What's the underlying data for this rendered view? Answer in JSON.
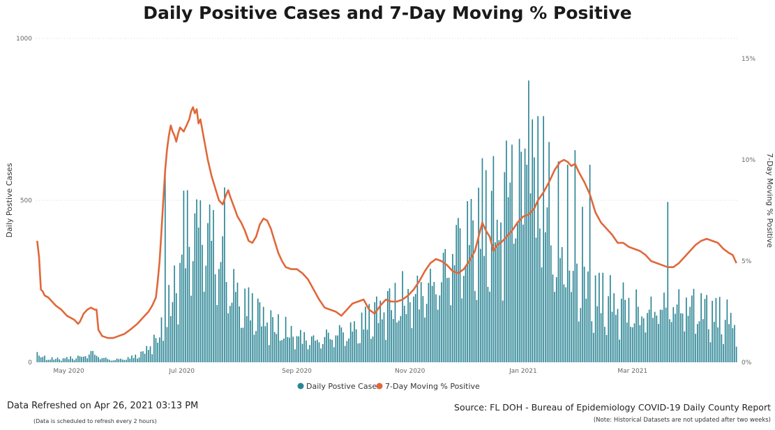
{
  "chart_data": {
    "type": "bar+line",
    "title": "Daily Positive Cases and 7-Day Moving % Positive",
    "ylabel": "Daily Postive Cases",
    "y2label": "7-Day Moving % Positive",
    "ylim": [
      0,
      1000
    ],
    "y2lim": [
      0,
      16
    ],
    "y_ticks": [
      "0",
      "500",
      "1000"
    ],
    "y2_ticks": [
      "0%",
      "5%",
      "10%",
      "15%"
    ],
    "x_ticks": [
      "May 2020",
      "Jul 2020",
      "Sep 2020",
      "Nov 2020",
      "Jan 2021",
      "Mar 2021"
    ],
    "x_tick_days": [
      17,
      78,
      140,
      201,
      262,
      321
    ],
    "start_date": "2020-04-14",
    "legend": [
      "Daily Postive Cases",
      "7-Day Moving  % Positive"
    ],
    "legend_position": "bottom",
    "colors": {
      "bars": "#2a8494",
      "line": "#e0683a",
      "grid": "#d4d4d4"
    },
    "series": [
      {
        "name": "Daily Postive Cases",
        "kind": "bar",
        "anchors": [
          [
            0,
            25
          ],
          [
            5,
            12
          ],
          [
            10,
            10
          ],
          [
            15,
            12
          ],
          [
            20,
            15
          ],
          [
            25,
            18
          ],
          [
            28,
            30
          ],
          [
            32,
            22
          ],
          [
            36,
            12
          ],
          [
            40,
            8
          ],
          [
            45,
            10
          ],
          [
            50,
            14
          ],
          [
            55,
            22
          ],
          [
            58,
            35
          ],
          [
            62,
            60
          ],
          [
            65,
            80
          ],
          [
            68,
            110
          ],
          [
            70,
            150
          ],
          [
            73,
            200
          ],
          [
            76,
            260
          ],
          [
            78,
            330
          ],
          [
            80,
            400
          ],
          [
            83,
            430
          ],
          [
            86,
            440
          ],
          [
            90,
            420
          ],
          [
            93,
            370
          ],
          [
            96,
            330
          ],
          [
            100,
            290
          ],
          [
            104,
            250
          ],
          [
            108,
            210
          ],
          [
            112,
            180
          ],
          [
            116,
            165
          ],
          [
            120,
            150
          ],
          [
            125,
            130
          ],
          [
            130,
            110
          ],
          [
            135,
            95
          ],
          [
            140,
            80
          ],
          [
            145,
            75
          ],
          [
            150,
            70
          ],
          [
            155,
            80
          ],
          [
            160,
            85
          ],
          [
            165,
            90
          ],
          [
            170,
            100
          ],
          [
            175,
            120
          ],
          [
            180,
            140
          ],
          [
            185,
            160
          ],
          [
            190,
            180
          ],
          [
            195,
            195
          ],
          [
            200,
            200
          ],
          [
            205,
            210
          ],
          [
            210,
            230
          ],
          [
            215,
            260
          ],
          [
            220,
            300
          ],
          [
            225,
            340
          ],
          [
            230,
            380
          ],
          [
            235,
            410
          ],
          [
            240,
            430
          ],
          [
            245,
            450
          ],
          [
            250,
            470
          ],
          [
            255,
            520
          ],
          [
            258,
            580
          ],
          [
            262,
            600
          ],
          [
            265,
            560
          ],
          [
            268,
            500
          ],
          [
            272,
            440
          ],
          [
            276,
            380
          ],
          [
            280,
            320
          ],
          [
            285,
            280
          ],
          [
            290,
            250
          ],
          [
            295,
            230
          ],
          [
            300,
            215
          ],
          [
            305,
            200
          ],
          [
            310,
            185
          ],
          [
            315,
            175
          ],
          [
            320,
            165
          ],
          [
            325,
            160
          ],
          [
            330,
            160
          ],
          [
            335,
            170
          ],
          [
            340,
            180
          ],
          [
            345,
            185
          ],
          [
            350,
            180
          ],
          [
            355,
            170
          ],
          [
            360,
            160
          ],
          [
            365,
            150
          ],
          [
            370,
            140
          ],
          [
            375,
            130
          ],
          [
            377,
            120
          ]
        ],
        "spikes": [
          [
            69,
            587
          ],
          [
            79,
            530
          ],
          [
            85,
            460
          ],
          [
            88,
            500
          ],
          [
            95,
            470
          ],
          [
            101,
            540
          ],
          [
            240,
            630
          ],
          [
            248,
            440
          ],
          [
            255,
            555
          ],
          [
            260,
            690
          ],
          [
            261,
            650
          ],
          [
            263,
            660
          ],
          [
            264,
            610
          ],
          [
            265,
            870
          ],
          [
            267,
            750
          ],
          [
            270,
            760
          ],
          [
            273,
            760
          ],
          [
            276,
            680
          ],
          [
            281,
            620
          ],
          [
            286,
            610
          ],
          [
            290,
            655
          ],
          [
            294,
            480
          ],
          [
            298,
            610
          ],
          [
            340,
            495
          ]
        ]
      },
      {
        "name": "7-Day Moving  % Positive",
        "kind": "line",
        "points": [
          [
            0,
            6.0
          ],
          [
            1,
            5.2
          ],
          [
            2,
            3.6
          ],
          [
            3,
            3.5
          ],
          [
            4,
            3.3
          ],
          [
            6,
            3.2
          ],
          [
            8,
            3.0
          ],
          [
            10,
            2.8
          ],
          [
            13,
            2.6
          ],
          [
            16,
            2.3
          ],
          [
            18,
            2.2
          ],
          [
            20,
            2.1
          ],
          [
            21,
            2.0
          ],
          [
            22,
            1.9
          ],
          [
            23,
            2.0
          ],
          [
            25,
            2.4
          ],
          [
            27,
            2.6
          ],
          [
            29,
            2.7
          ],
          [
            31,
            2.6
          ],
          [
            32,
            2.6
          ],
          [
            33,
            1.6
          ],
          [
            35,
            1.3
          ],
          [
            38,
            1.2
          ],
          [
            41,
            1.2
          ],
          [
            44,
            1.3
          ],
          [
            47,
            1.4
          ],
          [
            50,
            1.6
          ],
          [
            54,
            1.9
          ],
          [
            58,
            2.3
          ],
          [
            60,
            2.5
          ],
          [
            62,
            2.8
          ],
          [
            64,
            3.2
          ],
          [
            65,
            4.0
          ],
          [
            66,
            5.0
          ],
          [
            67,
            6.5
          ],
          [
            68,
            8.0
          ],
          [
            69,
            9.5
          ],
          [
            70,
            10.5
          ],
          [
            71,
            11.2
          ],
          [
            72,
            11.7
          ],
          [
            73,
            11.4
          ],
          [
            74,
            11.2
          ],
          [
            75,
            10.9
          ],
          [
            76,
            11.3
          ],
          [
            77,
            11.6
          ],
          [
            78,
            11.5
          ],
          [
            79,
            11.4
          ],
          [
            80,
            11.6
          ],
          [
            82,
            12.0
          ],
          [
            83,
            12.4
          ],
          [
            84,
            12.6
          ],
          [
            85,
            12.3
          ],
          [
            86,
            12.5
          ],
          [
            87,
            11.8
          ],
          [
            88,
            12.0
          ],
          [
            90,
            11.0
          ],
          [
            92,
            10.0
          ],
          [
            94,
            9.2
          ],
          [
            96,
            8.6
          ],
          [
            98,
            8.0
          ],
          [
            100,
            7.8
          ],
          [
            102,
            8.3
          ],
          [
            103,
            8.5
          ],
          [
            104,
            8.2
          ],
          [
            106,
            7.7
          ],
          [
            108,
            7.2
          ],
          [
            110,
            6.9
          ],
          [
            112,
            6.5
          ],
          [
            114,
            6.0
          ],
          [
            116,
            5.9
          ],
          [
            118,
            6.2
          ],
          [
            120,
            6.8
          ],
          [
            122,
            7.1
          ],
          [
            124,
            7.0
          ],
          [
            126,
            6.6
          ],
          [
            128,
            6.0
          ],
          [
            130,
            5.4
          ],
          [
            132,
            5.0
          ],
          [
            134,
            4.7
          ],
          [
            137,
            4.6
          ],
          [
            140,
            4.6
          ],
          [
            143,
            4.4
          ],
          [
            146,
            4.1
          ],
          [
            149,
            3.6
          ],
          [
            152,
            3.1
          ],
          [
            155,
            2.7
          ],
          [
            158,
            2.6
          ],
          [
            161,
            2.5
          ],
          [
            164,
            2.3
          ],
          [
            167,
            2.6
          ],
          [
            170,
            2.9
          ],
          [
            173,
            3.0
          ],
          [
            176,
            3.1
          ],
          [
            179,
            2.6
          ],
          [
            182,
            2.4
          ],
          [
            185,
            2.8
          ],
          [
            188,
            3.1
          ],
          [
            191,
            3.0
          ],
          [
            194,
            3.0
          ],
          [
            197,
            3.1
          ],
          [
            200,
            3.3
          ],
          [
            203,
            3.6
          ],
          [
            206,
            4.0
          ],
          [
            209,
            4.5
          ],
          [
            212,
            4.9
          ],
          [
            215,
            5.1
          ],
          [
            218,
            5.0
          ],
          [
            221,
            4.8
          ],
          [
            224,
            4.5
          ],
          [
            227,
            4.4
          ],
          [
            230,
            4.6
          ],
          [
            233,
            5.0
          ],
          [
            236,
            5.5
          ],
          [
            238,
            6.2
          ],
          [
            240,
            6.9
          ],
          [
            242,
            6.5
          ],
          [
            244,
            6.2
          ],
          [
            246,
            5.5
          ],
          [
            248,
            5.8
          ],
          [
            250,
            5.9
          ],
          [
            253,
            6.2
          ],
          [
            256,
            6.5
          ],
          [
            259,
            6.9
          ],
          [
            262,
            7.2
          ],
          [
            265,
            7.3
          ],
          [
            268,
            7.6
          ],
          [
            270,
            8.0
          ],
          [
            273,
            8.4
          ],
          [
            276,
            8.9
          ],
          [
            279,
            9.5
          ],
          [
            282,
            9.9
          ],
          [
            284,
            10.0
          ],
          [
            286,
            9.9
          ],
          [
            288,
            9.7
          ],
          [
            290,
            9.8
          ],
          [
            292,
            9.4
          ],
          [
            295,
            8.9
          ],
          [
            298,
            8.3
          ],
          [
            301,
            7.4
          ],
          [
            304,
            6.9
          ],
          [
            307,
            6.6
          ],
          [
            310,
            6.3
          ],
          [
            313,
            5.9
          ],
          [
            316,
            5.9
          ],
          [
            319,
            5.7
          ],
          [
            322,
            5.6
          ],
          [
            325,
            5.5
          ],
          [
            328,
            5.3
          ],
          [
            331,
            5.0
          ],
          [
            334,
            4.9
          ],
          [
            337,
            4.8
          ],
          [
            340,
            4.7
          ],
          [
            343,
            4.7
          ],
          [
            346,
            4.9
          ],
          [
            349,
            5.2
          ],
          [
            352,
            5.5
          ],
          [
            355,
            5.8
          ],
          [
            358,
            6.0
          ],
          [
            361,
            6.1
          ],
          [
            364,
            6.0
          ],
          [
            367,
            5.9
          ],
          [
            370,
            5.6
          ],
          [
            373,
            5.4
          ],
          [
            375,
            5.3
          ],
          [
            376,
            5.1
          ],
          [
            377,
            4.9
          ]
        ]
      }
    ]
  },
  "footer": {
    "refreshed": "Data Refreshed on Apr 26, 2021 03:13 PM",
    "refresh_note": "(Data is scheduled to refresh every 2 hours)",
    "source": "Source: FL DOH - Bureau of Epidemiology COVID-19 Daily County Report",
    "source_note": "(Note: Historical Datasets are not updated after two weeks)"
  }
}
